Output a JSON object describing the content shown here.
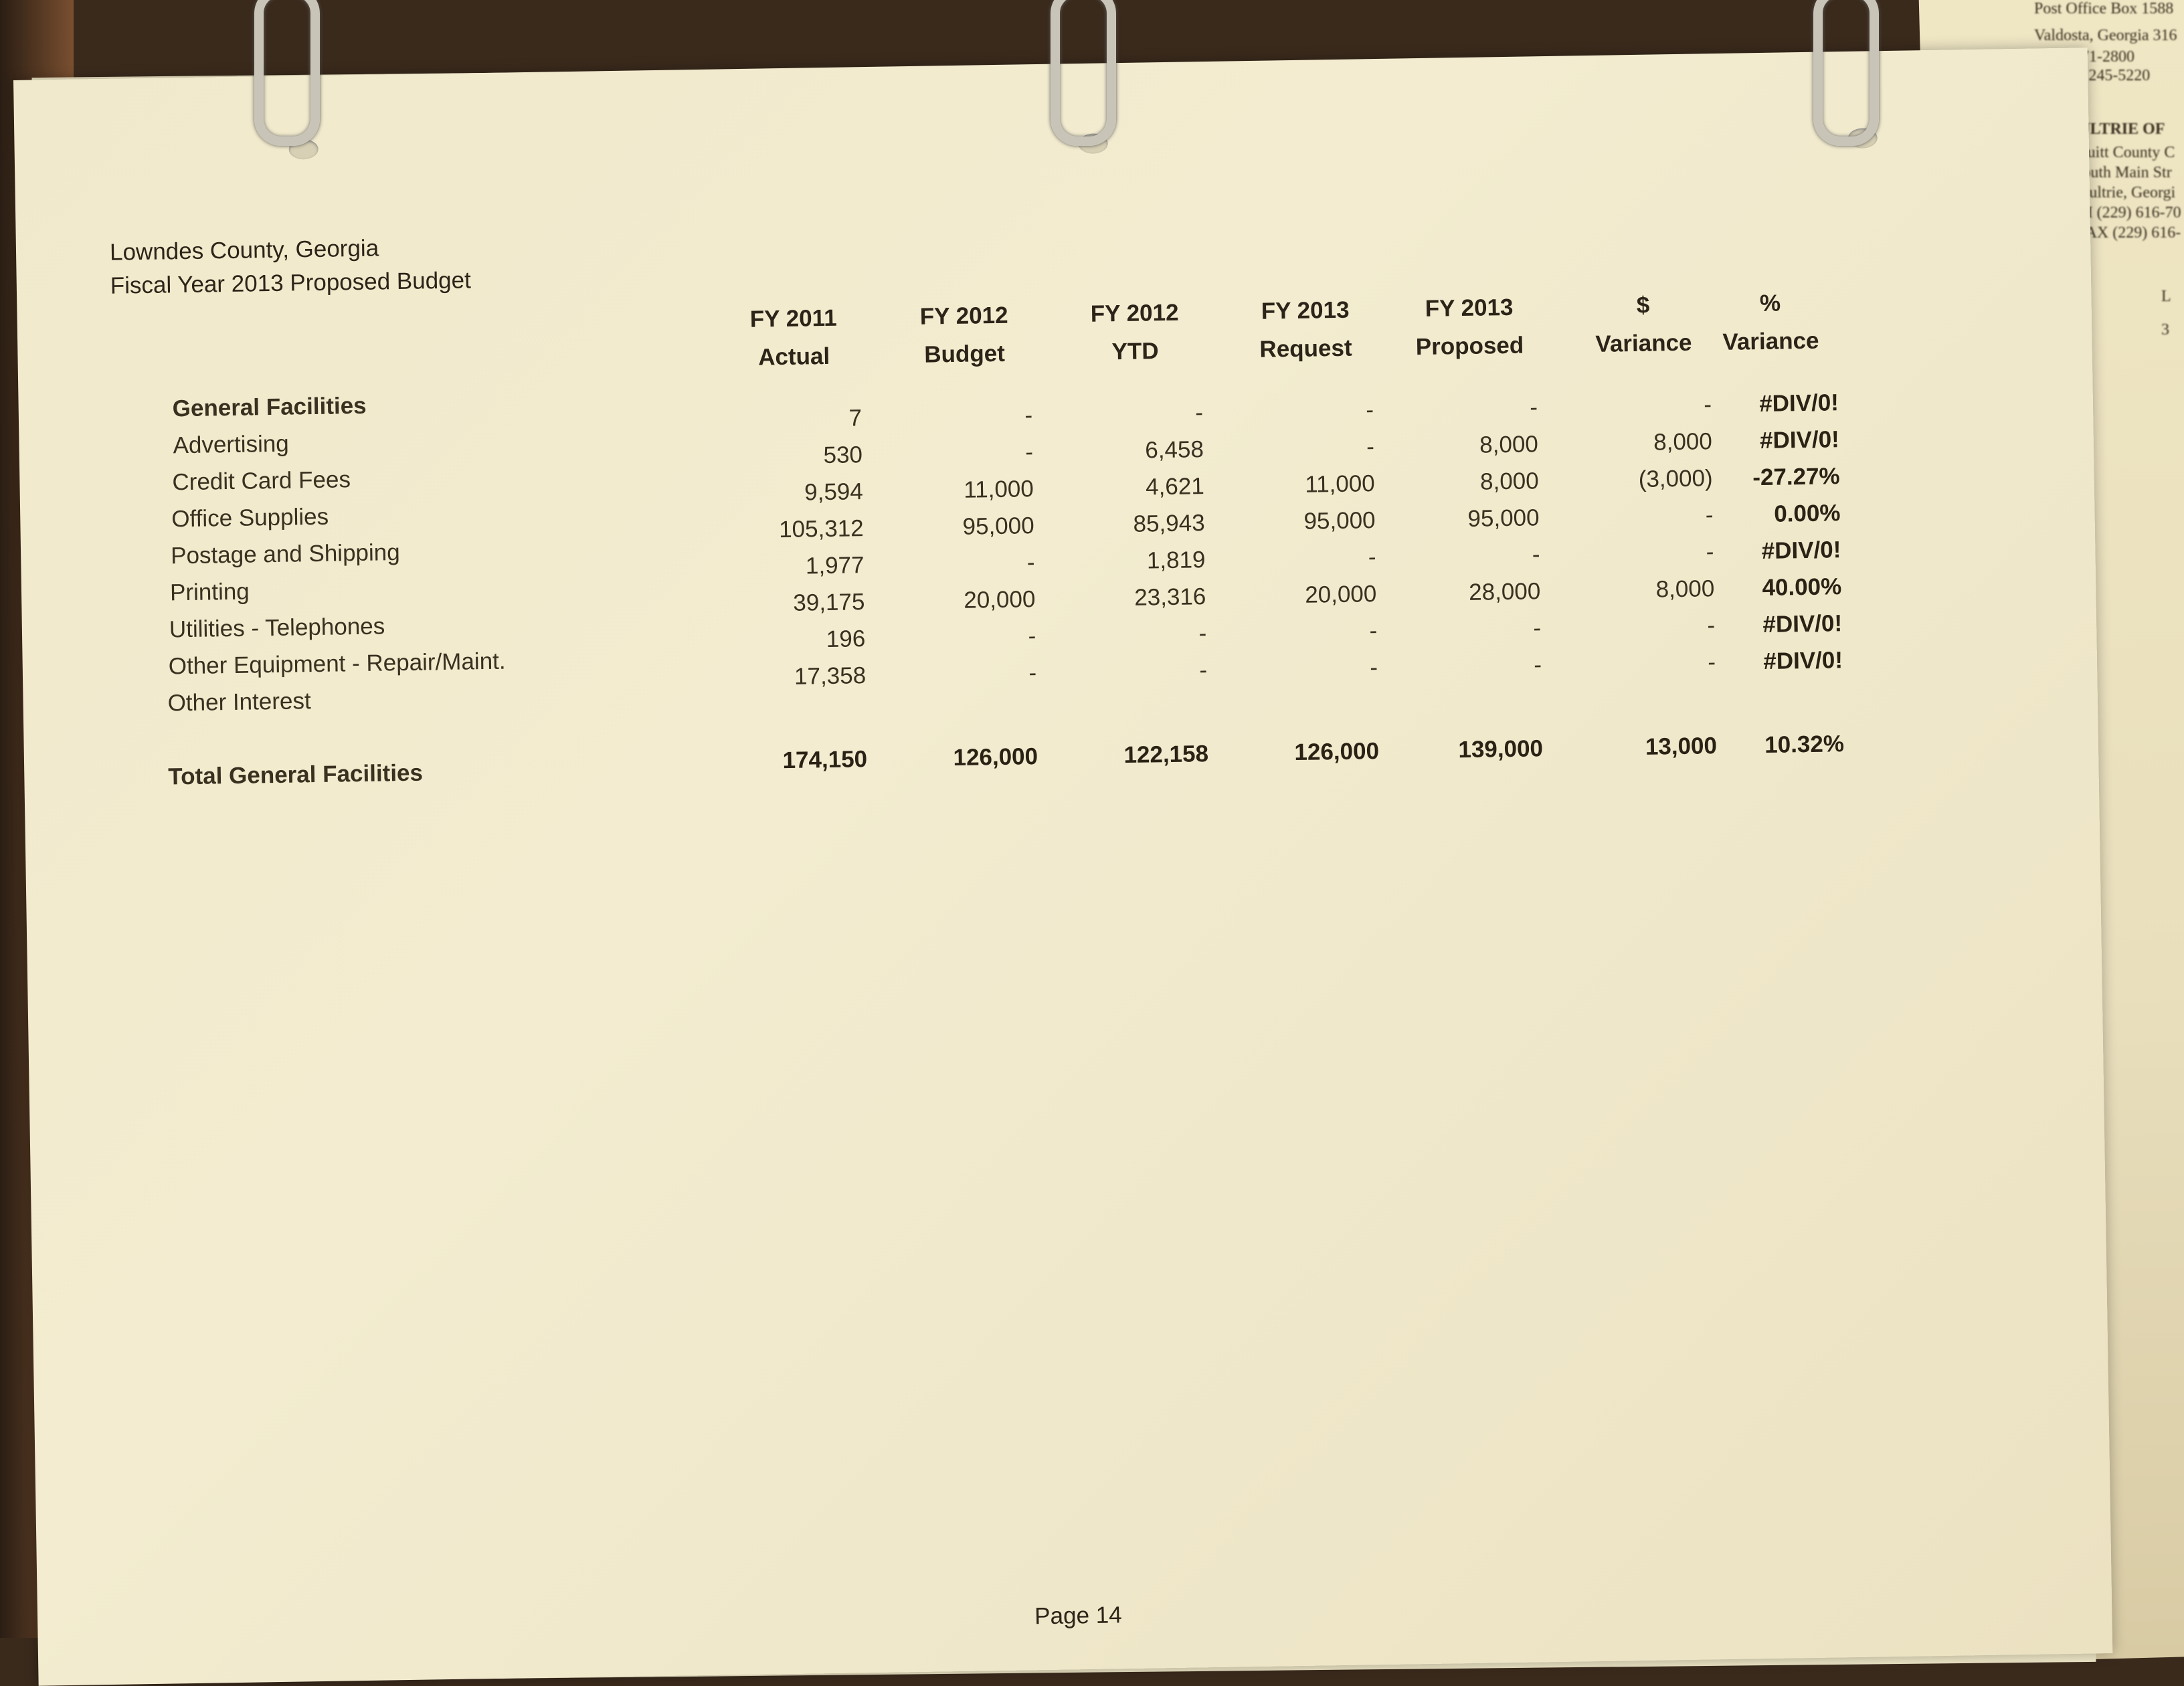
{
  "back_sheet": {
    "lines": [
      "Post Office Box 1588",
      "Valdosta, Georgia 316",
      "(229) 671-2800",
      "X (229) 245-5220",
      "MOULTRIE OF",
      "Colquitt County C",
      "9 South Main Str",
      "Moultrie, Georgi",
      "PH (229) 616-70",
      "FAX (229) 616-",
      "L",
      "3"
    ]
  },
  "document": {
    "org": "Lowndes County, Georgia",
    "title": "Fiscal Year 2013 Proposed Budget",
    "page_label": "Page 14"
  },
  "table": {
    "columns": [
      {
        "line1": "FY 2011",
        "line2": "Actual"
      },
      {
        "line1": "FY 2012",
        "line2": "Budget"
      },
      {
        "line1": "FY 2012",
        "line2": "YTD"
      },
      {
        "line1": "FY 2013",
        "line2": "Request"
      },
      {
        "line1": "FY 2013",
        "line2": "Proposed"
      },
      {
        "line1": "$",
        "line2": "Variance"
      },
      {
        "line1": "%",
        "line2": "Variance"
      }
    ],
    "section": "General Facilities",
    "rows": [
      {
        "label": "Advertising",
        "values": [
          "7",
          "-",
          "-",
          "-",
          "-",
          "-",
          "#DIV/0!"
        ]
      },
      {
        "label": "Credit Card Fees",
        "values": [
          "530",
          "-",
          "6,458",
          "-",
          "8,000",
          "8,000",
          "#DIV/0!"
        ]
      },
      {
        "label": "Office Supplies",
        "values": [
          "9,594",
          "11,000",
          "4,621",
          "11,000",
          "8,000",
          "(3,000)",
          "-27.27%"
        ]
      },
      {
        "label": "Postage and Shipping",
        "values": [
          "105,312",
          "95,000",
          "85,943",
          "95,000",
          "95,000",
          "-",
          "0.00%"
        ]
      },
      {
        "label": "Printing",
        "values": [
          "1,977",
          "-",
          "1,819",
          "-",
          "-",
          "-",
          "#DIV/0!"
        ]
      },
      {
        "label": "Utilities - Telephones",
        "values": [
          "39,175",
          "20,000",
          "23,316",
          "20,000",
          "28,000",
          "8,000",
          "40.00%"
        ]
      },
      {
        "label": "Other Equipment - Repair/Maint.",
        "values": [
          "196",
          "-",
          "-",
          "-",
          "-",
          "-",
          "#DIV/0!"
        ]
      },
      {
        "label": "Other Interest",
        "values": [
          "17,358",
          "-",
          "-",
          "-",
          "-",
          "-",
          "#DIV/0!"
        ]
      }
    ],
    "total": {
      "label": "Total General Facilities",
      "values": [
        "174,150",
        "126,000",
        "122,158",
        "126,000",
        "139,000",
        "13,000",
        "10.32%"
      ]
    }
  }
}
